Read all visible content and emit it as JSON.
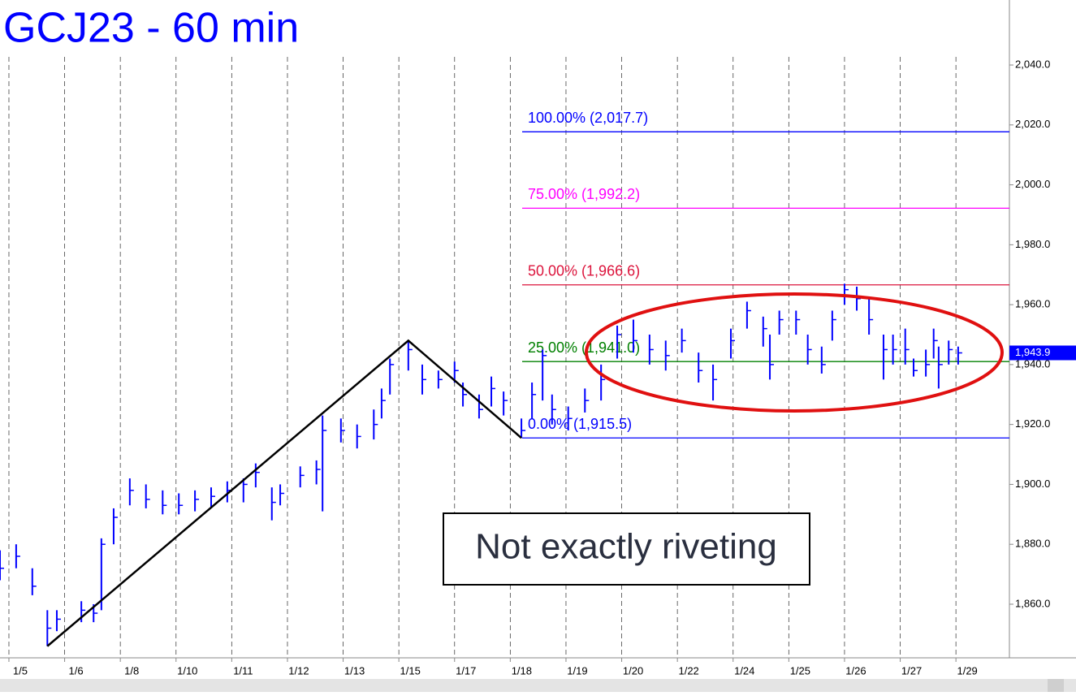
{
  "chart_data": {
    "type": "ohlc",
    "title": "GCJ23 - 60 min",
    "note": "Not exactly riveting",
    "color": "#0000ff",
    "xlim": [
      -0.16,
      17.96
    ],
    "ylim": [
      1842.1,
      2061.7
    ],
    "xticks": [
      {
        "value": 0,
        "label": "1/5"
      },
      {
        "value": 1,
        "label": "1/6"
      },
      {
        "value": 2,
        "label": "1/8"
      },
      {
        "value": 3,
        "label": "1/10"
      },
      {
        "value": 4,
        "label": "1/11"
      },
      {
        "value": 5,
        "label": "1/12"
      },
      {
        "value": 6,
        "label": "1/13"
      },
      {
        "value": 7,
        "label": "1/15"
      },
      {
        "value": 8,
        "label": "1/17"
      },
      {
        "value": 9,
        "label": "1/18"
      },
      {
        "value": 10,
        "label": "1/19"
      },
      {
        "value": 11,
        "label": "1/20"
      },
      {
        "value": 12,
        "label": "1/22"
      },
      {
        "value": 13,
        "label": "1/24"
      },
      {
        "value": 14,
        "label": "1/25"
      },
      {
        "value": 15,
        "label": "1/26"
      },
      {
        "value": 16,
        "label": "1/27"
      },
      {
        "value": 17,
        "label": "1/29"
      }
    ],
    "yticks": [
      {
        "value": 1860,
        "label": "1,860.0"
      },
      {
        "value": 1880,
        "label": "1,880.0"
      },
      {
        "value": 1900,
        "label": "1,900.0"
      },
      {
        "value": 1920,
        "label": "1,920.0"
      },
      {
        "value": 1940,
        "label": "1,940.0"
      },
      {
        "value": 1960,
        "label": "1,960.0"
      },
      {
        "value": 1980,
        "label": "1,980.0"
      },
      {
        "value": 2000,
        "label": "2,000.0"
      },
      {
        "value": 2020,
        "label": "2,020.0"
      },
      {
        "value": 2040,
        "label": "2,040.0"
      }
    ],
    "x": [
      -0.16,
      0.13,
      0.42,
      0.69,
      0.86,
      1.3,
      1.52,
      1.66,
      1.88,
      2.17,
      2.46,
      2.76,
      3.05,
      3.34,
      3.63,
      3.92,
      4.21,
      4.43,
      4.72,
      4.87,
      5.23,
      5.52,
      5.63,
      5.96,
      6.25,
      6.55,
      6.69,
      6.84,
      7.17,
      7.42,
      7.71,
      8.0,
      8.15,
      8.44,
      8.66,
      8.88,
      9.2,
      9.39,
      9.58,
      9.75,
      10.04,
      10.34,
      10.63,
      10.92,
      11.21,
      11.5,
      11.79,
      12.08,
      12.38,
      12.64,
      12.96,
      13.25,
      13.54,
      13.66,
      13.83,
      14.13,
      14.34,
      14.59,
      14.78,
      15.0,
      15.22,
      15.44,
      15.7,
      15.87,
      16.09,
      16.24,
      16.46,
      16.6,
      16.69,
      16.87,
      17.04
    ],
    "high": [
      1878,
      1880,
      1872,
      1858,
      1858,
      1861,
      1860,
      1882,
      1892,
      1902,
      1900,
      1898,
      1897,
      1898,
      1899,
      1901,
      1902,
      1907,
      1899,
      1900,
      1906,
      1908,
      1923,
      1922,
      1920,
      1925,
      1932,
      1942,
      1948,
      1940,
      1938,
      1941,
      1934,
      1930,
      1936,
      1931,
      1922,
      1934,
      1945,
      1930,
      1926,
      1932,
      1940,
      1953,
      1955,
      1950,
      1948,
      1952,
      1944,
      1940,
      1952,
      1961,
      1956,
      1950,
      1958,
      1958,
      1950,
      1946,
      1958,
      1967,
      1966,
      1962,
      1950,
      1950,
      1952,
      1942,
      1945,
      1952,
      1946,
      1948,
      1946
    ],
    "low": [
      1868,
      1872,
      1863,
      1846,
      1851,
      1854,
      1854,
      1858,
      1880,
      1893,
      1892,
      1890,
      1890,
      1891,
      1892,
      1894,
      1894,
      1899,
      1888,
      1893,
      1899,
      1900,
      1891,
      1914,
      1912,
      1915,
      1922,
      1930,
      1938,
      1930,
      1932,
      1934,
      1926,
      1922,
      1926,
      1923,
      1915.5,
      1922,
      1928,
      1920,
      1918,
      1924,
      1928,
      1942,
      1944,
      1940,
      1938,
      1944,
      1934,
      1928,
      1942,
      1952,
      1946,
      1935,
      1950,
      1950,
      1940,
      1937,
      1948,
      1960,
      1958,
      1950,
      1935,
      1940,
      1940,
      1936,
      1936,
      1942,
      1932,
      1940,
      1940
    ],
    "close": [
      1872,
      1876,
      1866,
      1852,
      1855,
      1858,
      1857,
      1880,
      1889,
      1898,
      1895,
      1893,
      1893,
      1895,
      1896,
      1898,
      1900,
      1904,
      1894,
      1897,
      1903,
      1905,
      1918,
      1918,
      1916,
      1920,
      1928,
      1940,
      1945,
      1935,
      1935,
      1938,
      1930,
      1925,
      1932,
      1928,
      1918,
      1930,
      1943,
      1925,
      1922,
      1928,
      1935,
      1950,
      1948,
      1945,
      1943,
      1948,
      1938,
      1935,
      1948,
      1958,
      1952,
      1940,
      1955,
      1955,
      1945,
      1940,
      1955,
      1965,
      1962,
      1955,
      1945,
      1945,
      1945,
      1938,
      1940,
      1948,
      1940,
      1945,
      1943.9
    ],
    "levels": [
      {
        "label": "100.00% (2,017.7)",
        "value": 2017.7,
        "color": "#0000ff"
      },
      {
        "label": "75.00% (1,992.2)",
        "value": 1992.2,
        "color": "#ff00ff"
      },
      {
        "label": "50.00% (1,966.6)",
        "value": 1966.6,
        "color": "#dc143c"
      },
      {
        "label": "25.00% (1,941.0)",
        "value": 1941.0,
        "color": "#008000"
      },
      {
        "label": "0.00% (1,915.5)",
        "value": 1915.5,
        "color": "#0000ff"
      }
    ],
    "swing": {
      "x": [
        0.69,
        7.17,
        9.2
      ],
      "values": [
        1846,
        1948,
        1915.5
      ],
      "color": "#000000"
    },
    "last_price": {
      "value": 1943.9,
      "label": "1,943.9"
    }
  }
}
